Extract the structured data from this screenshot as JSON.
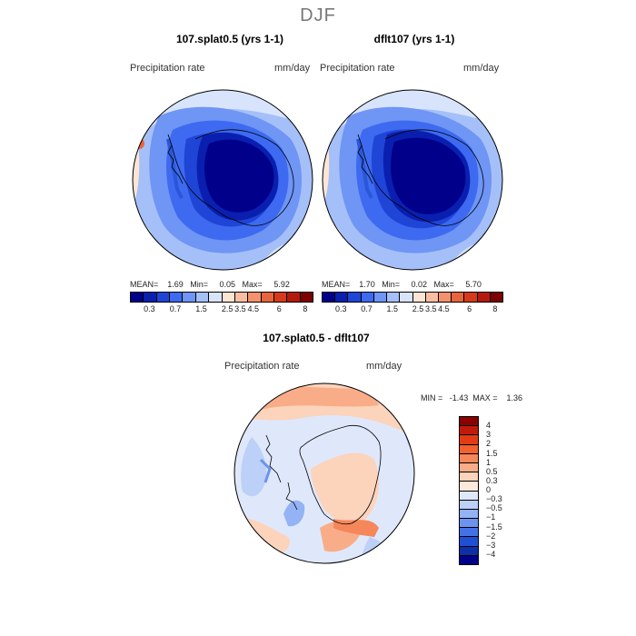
{
  "figure": {
    "season": "DJF"
  },
  "panel_left": {
    "title": "107.splat0.5 (yrs 1-1)",
    "variable": "Precipitation rate",
    "units": "mm/day",
    "stats": "MEAN=    1.69   Min=     0.05   Max=     5.92"
  },
  "panel_right": {
    "title": "dflt107 (yrs 1-1)",
    "variable": "Precipitation rate",
    "units": "mm/day",
    "stats": "MEAN=    1.70   Min=     0.02   Max=     5.70"
  },
  "panel_diff": {
    "title": "107.splat0.5 - dflt107",
    "variable": "Precipitation rate",
    "units": "mm/day",
    "stats": "MIN =   -1.43  MAX =    1.36"
  },
  "colorbar_precip": {
    "ticks": [
      "0.3",
      "0.7",
      "1.5",
      "2.5",
      "3.5",
      "4.5",
      "6",
      "8"
    ],
    "colors": [
      "#00008b",
      "#0a1fb0",
      "#1f45d6",
      "#3d6af0",
      "#6f95f5",
      "#a5bff8",
      "#d8e4fb",
      "#fde5d4",
      "#f9bea2",
      "#f3926c",
      "#e8643f",
      "#d63a1c",
      "#b41a0c",
      "#7c0000"
    ]
  },
  "colorbar_diff": {
    "ticks": [
      "4",
      "3",
      "2",
      "1.5",
      "1",
      "0.5",
      "0.3",
      "0",
      "−0.3",
      "−0.5",
      "−1",
      "−1.5",
      "−2",
      "−3",
      "−4"
    ],
    "colors": [
      "#8b0000",
      "#c21a0a",
      "#e23c14",
      "#f2612e",
      "#f6875a",
      "#f8ad88",
      "#fcd3bb",
      "#fde8dc",
      "#dfe8fb",
      "#bcd0f8",
      "#93b3f5",
      "#6c93ef",
      "#4472e6",
      "#1f4fd3",
      "#0d2fa8",
      "#00008b"
    ]
  }
}
